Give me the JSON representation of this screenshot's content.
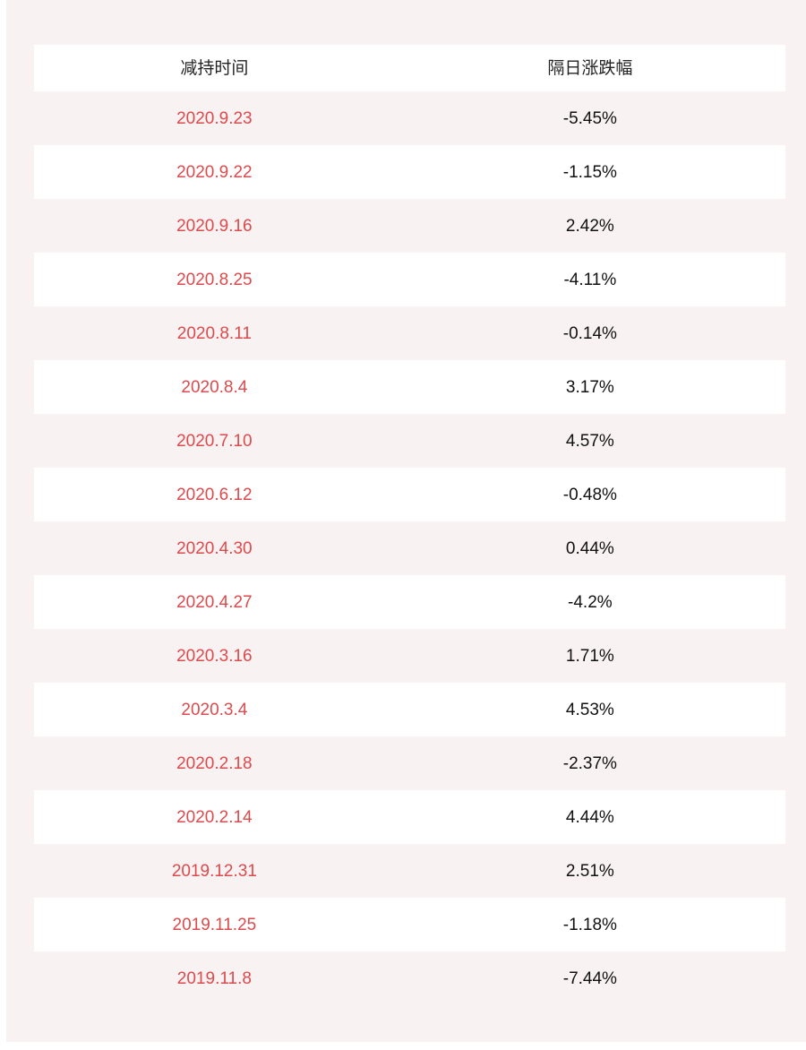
{
  "page": {
    "background_color": "#f9f2f2",
    "edge_strip_color": "#ffffff",
    "date_text_color": "#dc4a4c",
    "change_text_color": "#111111"
  },
  "chart_data": {
    "type": "table",
    "columns": [
      "减持时间",
      "隔日涨跌幅"
    ],
    "rows": [
      {
        "date": "2020.9.23",
        "change_pct": "-5.45%",
        "change_value": -5.45
      },
      {
        "date": "2020.9.22",
        "change_pct": "-1.15%",
        "change_value": -1.15
      },
      {
        "date": "2020.9.16",
        "change_pct": "2.42%",
        "change_value": 2.42
      },
      {
        "date": "2020.8.25",
        "change_pct": "-4.11%",
        "change_value": -4.11
      },
      {
        "date": "2020.8.11",
        "change_pct": "-0.14%",
        "change_value": -0.14
      },
      {
        "date": "2020.8.4",
        "change_pct": "3.17%",
        "change_value": 3.17
      },
      {
        "date": "2020.7.10",
        "change_pct": "4.57%",
        "change_value": 4.57
      },
      {
        "date": "2020.6.12",
        "change_pct": "-0.48%",
        "change_value": -0.48
      },
      {
        "date": "2020.4.30",
        "change_pct": "0.44%",
        "change_value": 0.44
      },
      {
        "date": "2020.4.27",
        "change_pct": "-4.2%",
        "change_value": -4.2
      },
      {
        "date": "2020.3.16",
        "change_pct": "1.71%",
        "change_value": 1.71
      },
      {
        "date": "2020.3.4",
        "change_pct": "4.53%",
        "change_value": 4.53
      },
      {
        "date": "2020.2.18",
        "change_pct": "-2.37%",
        "change_value": -2.37
      },
      {
        "date": "2020.2.14",
        "change_pct": "4.44%",
        "change_value": 4.44
      },
      {
        "date": "2019.12.31",
        "change_pct": "2.51%",
        "change_value": 2.51
      },
      {
        "date": "2019.11.25",
        "change_pct": "-1.18%",
        "change_value": -1.18
      },
      {
        "date": "2019.11.8",
        "change_pct": "-7.44%",
        "change_value": -7.44
      }
    ]
  }
}
